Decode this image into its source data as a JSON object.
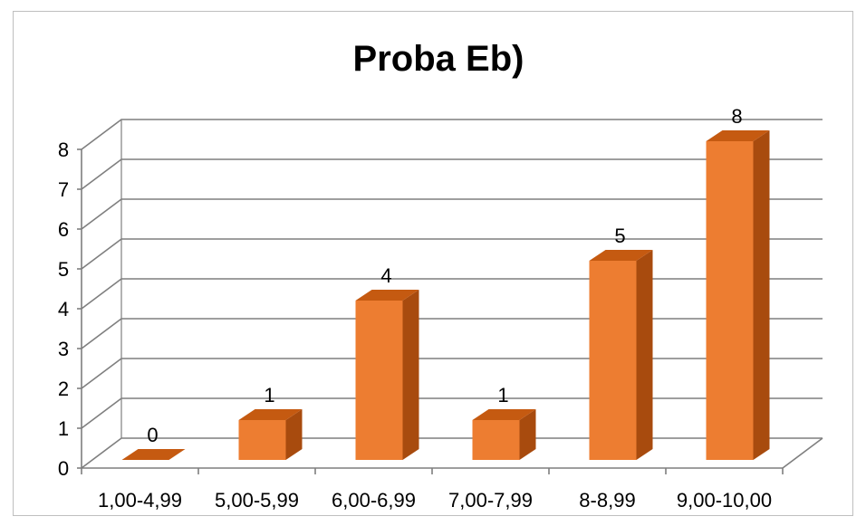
{
  "chart_data": {
    "type": "bar",
    "style": "3d-column",
    "title": "Proba Eb)",
    "categories": [
      "1,00-4,99",
      "5,00-5,99",
      "6,00-6,99",
      "7,00-7,99",
      "8-8,99",
      "9,00-10,00"
    ],
    "values": [
      0,
      1,
      4,
      1,
      5,
      8
    ],
    "data_labels": [
      "0",
      "1",
      "4",
      "1",
      "5",
      "8"
    ],
    "y_ticks": [
      "0",
      "1",
      "2",
      "3",
      "4",
      "5",
      "6",
      "7",
      "8"
    ],
    "ylim": [
      0,
      8
    ],
    "grid": true,
    "legend": "none",
    "colors": {
      "bar_front": "#ed7d31",
      "bar_top": "#c55a11",
      "bar_side": "#a84b0e",
      "grid": "#7f7f7f"
    }
  }
}
